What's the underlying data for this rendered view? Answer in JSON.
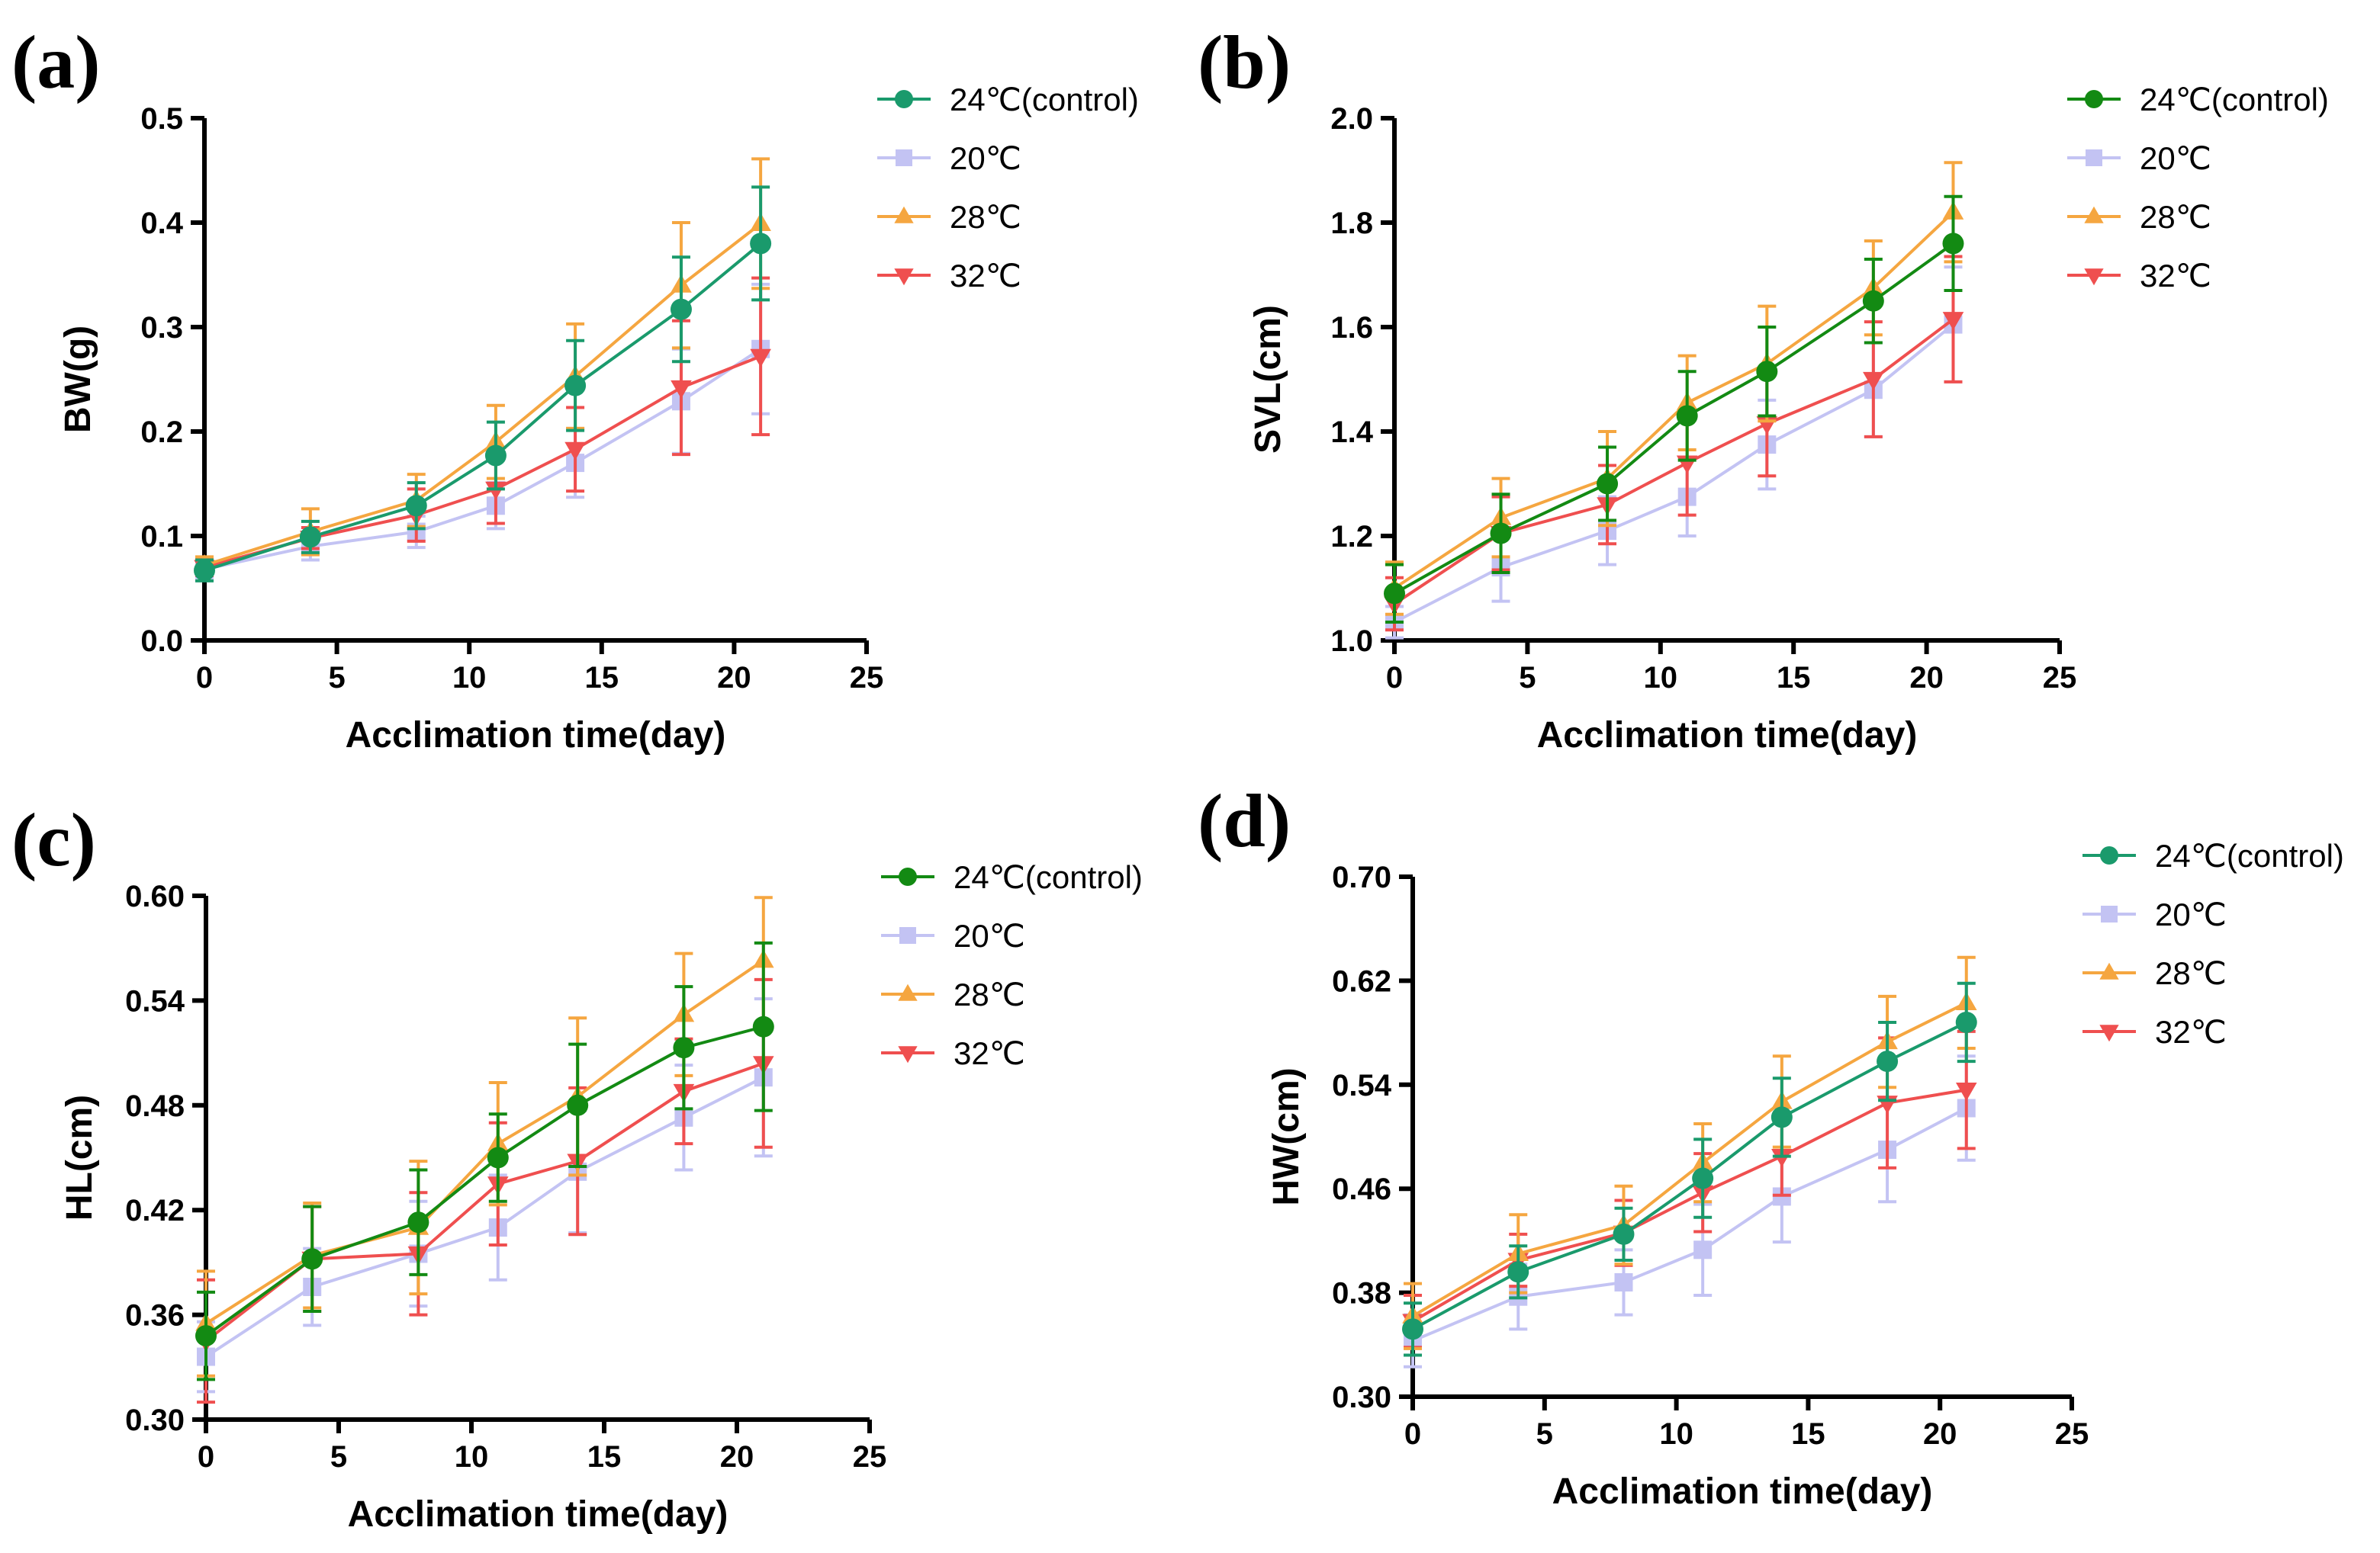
{
  "chart_data": [
    {
      "type": "line",
      "panel": "(a)",
      "xlabel": "Acclimation time(day)",
      "ylabel": "BW(g)",
      "xlim": [
        0,
        25
      ],
      "xticks": [
        0,
        5,
        10,
        15,
        20,
        25
      ],
      "ylim": [
        0,
        0.5
      ],
      "yticks": [
        "0.0",
        "0.1",
        "0.2",
        "0.3",
        "0.4",
        "0.5"
      ],
      "legend_position": "top-right outside",
      "x": [
        0,
        4,
        8,
        11,
        14,
        18,
        21
      ],
      "series": [
        {
          "name": "24℃(control)",
          "color": "#1a9a6c",
          "marker": "circle",
          "values": [
            0.067,
            0.099,
            0.129,
            0.177,
            0.244,
            0.317,
            0.38
          ],
          "error": [
            0.01,
            0.015,
            0.022,
            0.032,
            0.043,
            0.05,
            0.054
          ]
        },
        {
          "name": "20℃",
          "color": "#c3c3f3",
          "marker": "square",
          "values": [
            0.068,
            0.09,
            0.104,
            0.129,
            0.17,
            0.229,
            0.279
          ],
          "error": [
            0.008,
            0.013,
            0.015,
            0.022,
            0.033,
            0.05,
            0.062
          ]
        },
        {
          "name": "28℃",
          "color": "#f5a640",
          "marker": "triangle-up",
          "values": [
            0.072,
            0.104,
            0.134,
            0.19,
            0.253,
            0.34,
            0.399
          ],
          "error": [
            0.008,
            0.022,
            0.025,
            0.035,
            0.05,
            0.06,
            0.062
          ]
        },
        {
          "name": "32℃",
          "color": "#ef4f4f",
          "marker": "triangle-down",
          "values": [
            0.07,
            0.098,
            0.12,
            0.145,
            0.183,
            0.242,
            0.272
          ],
          "error": [
            0.008,
            0.01,
            0.025,
            0.033,
            0.04,
            0.064,
            0.075
          ]
        }
      ]
    },
    {
      "type": "line",
      "panel": "(b)",
      "xlabel": "Acclimation time(day)",
      "ylabel": "SVL(cm)",
      "xlim": [
        0,
        25
      ],
      "xticks": [
        0,
        5,
        10,
        15,
        20,
        25
      ],
      "ylim": [
        1.0,
        2.0
      ],
      "yticks": [
        "1.0",
        "1.2",
        "1.4",
        "1.6",
        "1.8",
        "2.0"
      ],
      "legend_position": "top-right outside",
      "x": [
        0,
        4,
        8,
        11,
        14,
        18,
        21
      ],
      "series": [
        {
          "name": "24℃(control)",
          "color": "#138a13",
          "marker": "circle",
          "values": [
            1.09,
            1.205,
            1.3,
            1.43,
            1.515,
            1.65,
            1.76
          ],
          "error": [
            0.055,
            0.075,
            0.07,
            0.085,
            0.085,
            0.08,
            0.09
          ]
        },
        {
          "name": "20℃",
          "color": "#c3c3f3",
          "marker": "square",
          "values": [
            1.035,
            1.14,
            1.21,
            1.275,
            1.375,
            1.48,
            1.605
          ],
          "error": [
            0.03,
            0.065,
            0.065,
            0.075,
            0.085,
            0.09,
            0.11
          ]
        },
        {
          "name": "28℃",
          "color": "#f5a640",
          "marker": "triangle-up",
          "values": [
            1.1,
            1.235,
            1.31,
            1.455,
            1.53,
            1.675,
            1.82
          ],
          "error": [
            0.05,
            0.075,
            0.09,
            0.09,
            0.11,
            0.09,
            0.095
          ]
        },
        {
          "name": "32℃",
          "color": "#ef4f4f",
          "marker": "triangle-down",
          "values": [
            1.07,
            1.205,
            1.26,
            1.34,
            1.415,
            1.5,
            1.615
          ],
          "error": [
            0.05,
            0.07,
            0.075,
            0.1,
            0.1,
            0.11,
            0.12
          ]
        }
      ]
    },
    {
      "type": "line",
      "panel": "(c)",
      "xlabel": "Acclimation time(day)",
      "ylabel": "HL(cm)",
      "xlim": [
        0,
        25
      ],
      "xticks": [
        0,
        5,
        10,
        15,
        20,
        25
      ],
      "ylim": [
        0.3,
        0.6
      ],
      "yticks": [
        "0.30",
        "0.36",
        "0.42",
        "0.48",
        "0.54",
        "0.60"
      ],
      "legend_position": "top-right outside",
      "x": [
        0,
        4,
        8,
        11,
        14,
        18,
        21
      ],
      "series": [
        {
          "name": "24℃(control)",
          "color": "#138a13",
          "marker": "circle",
          "values": [
            0.348,
            0.392,
            0.413,
            0.45,
            0.48,
            0.513,
            0.525
          ],
          "error": [
            0.025,
            0.03,
            0.03,
            0.025,
            0.035,
            0.035,
            0.048
          ]
        },
        {
          "name": "20℃",
          "color": "#c3c3f3",
          "marker": "square",
          "values": [
            0.336,
            0.376,
            0.395,
            0.41,
            0.442,
            0.473,
            0.496
          ],
          "error": [
            0.02,
            0.022,
            0.03,
            0.03,
            0.035,
            0.03,
            0.045
          ]
        },
        {
          "name": "28℃",
          "color": "#f5a640",
          "marker": "triangle-up",
          "values": [
            0.355,
            0.394,
            0.41,
            0.458,
            0.485,
            0.532,
            0.563
          ],
          "error": [
            0.03,
            0.03,
            0.038,
            0.035,
            0.045,
            0.035,
            0.036
          ]
        },
        {
          "name": "32℃",
          "color": "#ef4f4f",
          "marker": "triangle-down",
          "values": [
            0.345,
            0.392,
            0.395,
            0.435,
            0.448,
            0.488,
            0.504
          ],
          "error": [
            0.035,
            0.03,
            0.035,
            0.035,
            0.042,
            0.03,
            0.048
          ]
        }
      ]
    },
    {
      "type": "line",
      "panel": "(d)",
      "xlabel": "Acclimation time(day)",
      "ylabel": "HW(cm)",
      "xlim": [
        0,
        25
      ],
      "xticks": [
        0,
        5,
        10,
        15,
        20,
        25
      ],
      "ylim": [
        0.3,
        0.7
      ],
      "yticks": [
        "0.30",
        "0.38",
        "0.46",
        "0.54",
        "0.62",
        "0.70"
      ],
      "legend_position": "top-right outside",
      "x": [
        0,
        4,
        8,
        11,
        14,
        18,
        21
      ],
      "series": [
        {
          "name": "24℃(control)",
          "color": "#1a9a6c",
          "marker": "circle",
          "values": [
            0.352,
            0.396,
            0.425,
            0.468,
            0.515,
            0.558,
            0.588
          ],
          "error": [
            0.02,
            0.02,
            0.02,
            0.03,
            0.03,
            0.03,
            0.03
          ]
        },
        {
          "name": "20℃",
          "color": "#c3c3f3",
          "marker": "square",
          "values": [
            0.343,
            0.377,
            0.388,
            0.413,
            0.454,
            0.49,
            0.522
          ],
          "error": [
            0.02,
            0.025,
            0.025,
            0.035,
            0.035,
            0.04,
            0.04
          ]
        },
        {
          "name": "28℃",
          "color": "#f5a640",
          "marker": "triangle-up",
          "values": [
            0.362,
            0.41,
            0.432,
            0.48,
            0.527,
            0.573,
            0.603
          ],
          "error": [
            0.025,
            0.03,
            0.03,
            0.03,
            0.035,
            0.035,
            0.035
          ]
        },
        {
          "name": "32℃",
          "color": "#ef4f4f",
          "marker": "triangle-down",
          "values": [
            0.358,
            0.405,
            0.426,
            0.457,
            0.485,
            0.526,
            0.536
          ],
          "error": [
            0.02,
            0.02,
            0.025,
            0.03,
            0.03,
            0.05,
            0.045
          ]
        }
      ]
    }
  ]
}
